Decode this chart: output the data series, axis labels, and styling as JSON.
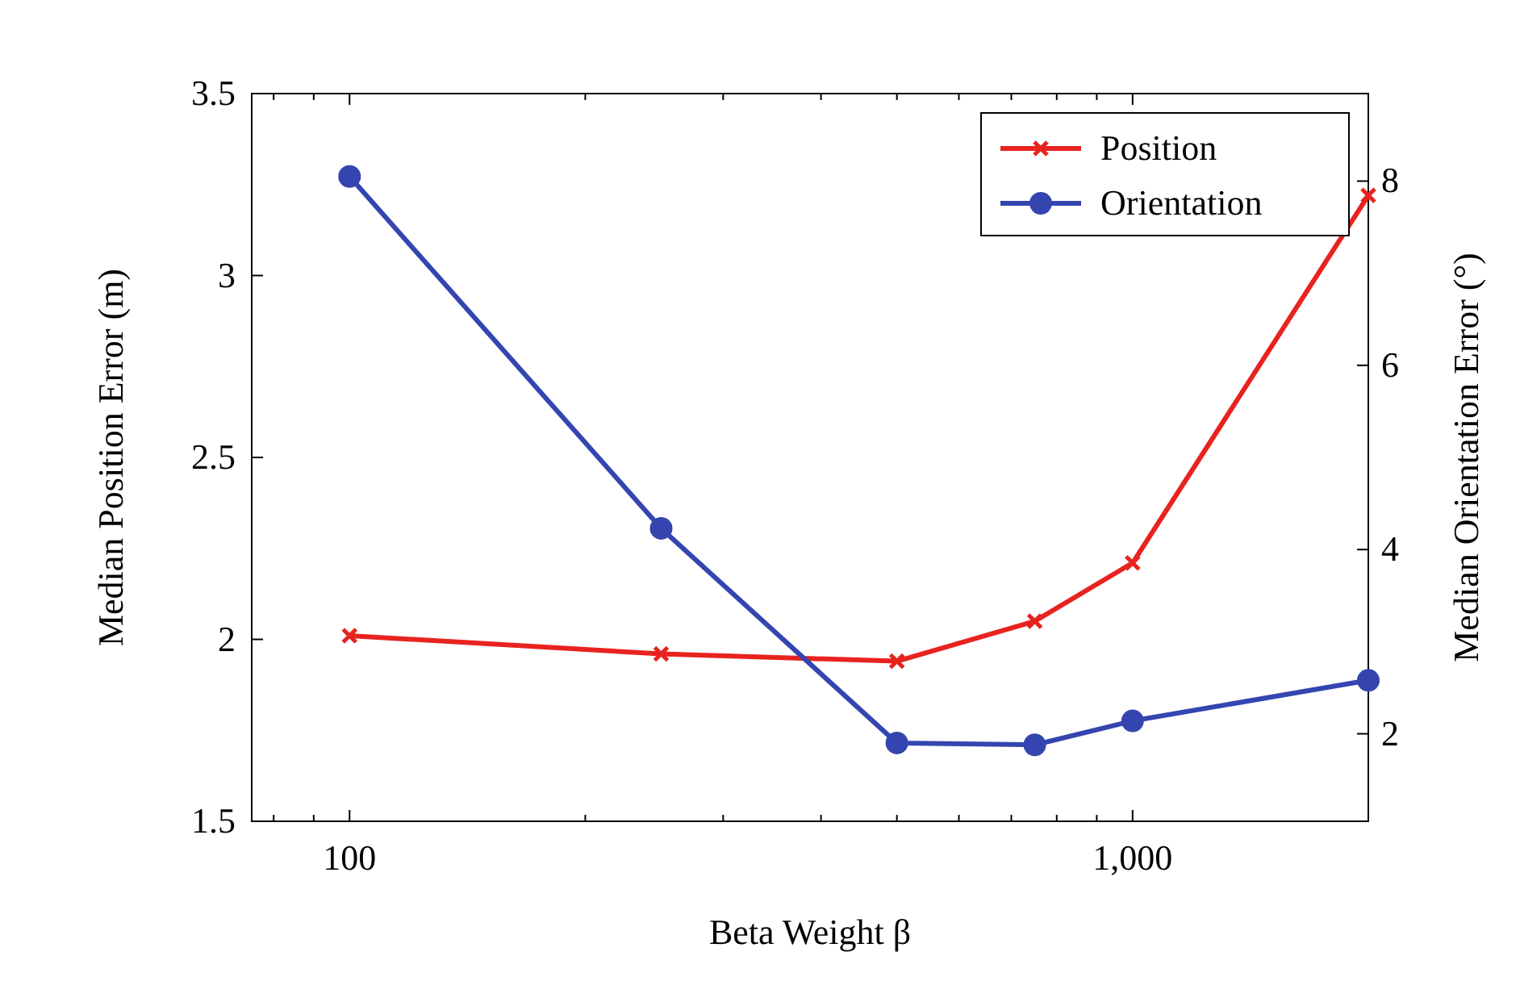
{
  "chart_data": {
    "type": "line",
    "xlabel": "Beta Weight β",
    "ylabel": "Median Position Error (m)",
    "y2label": "Median Orientation Error (°)",
    "x": [
      100,
      250,
      500,
      750,
      1000,
      2000
    ],
    "log": "x",
    "xlim": [
      75,
      2000
    ],
    "xticks": [
      {
        "value": 80,
        "label": null
      },
      {
        "value": 90,
        "label": null
      },
      100,
      {
        "value": 200,
        "label": null
      },
      {
        "value": 300,
        "label": null
      },
      {
        "value": 400,
        "label": null
      },
      {
        "value": 500,
        "label": null
      },
      {
        "value": 600,
        "label": null
      },
      {
        "value": 700,
        "label": null
      },
      {
        "value": 800,
        "label": null
      },
      {
        "value": 900,
        "label": null
      },
      {
        "value": 1000,
        "label": "1,000"
      },
      {
        "value": 2000,
        "label": null
      }
    ],
    "ylim": [
      1.5,
      3.5
    ],
    "yticks": [
      1.5,
      2,
      2.5,
      3,
      3.5
    ],
    "y2lim": [
      1.05,
      8.95
    ],
    "y2ticks": [
      2,
      4,
      6,
      8
    ],
    "legend": "top right",
    "grid": false,
    "line_style": "solid",
    "series": [
      {
        "name": "Position",
        "color": "#e8231f",
        "marker": "cross",
        "values": [
          2.01,
          1.96,
          1.94,
          2.05,
          2.21,
          3.22
        ]
      },
      {
        "name": "Orientation",
        "color": "#3545b0",
        "marker": "circle",
        "axis": "y2",
        "values": [
          8.05,
          4.23,
          1.9,
          1.88,
          2.14,
          2.58
        ]
      }
    ]
  }
}
